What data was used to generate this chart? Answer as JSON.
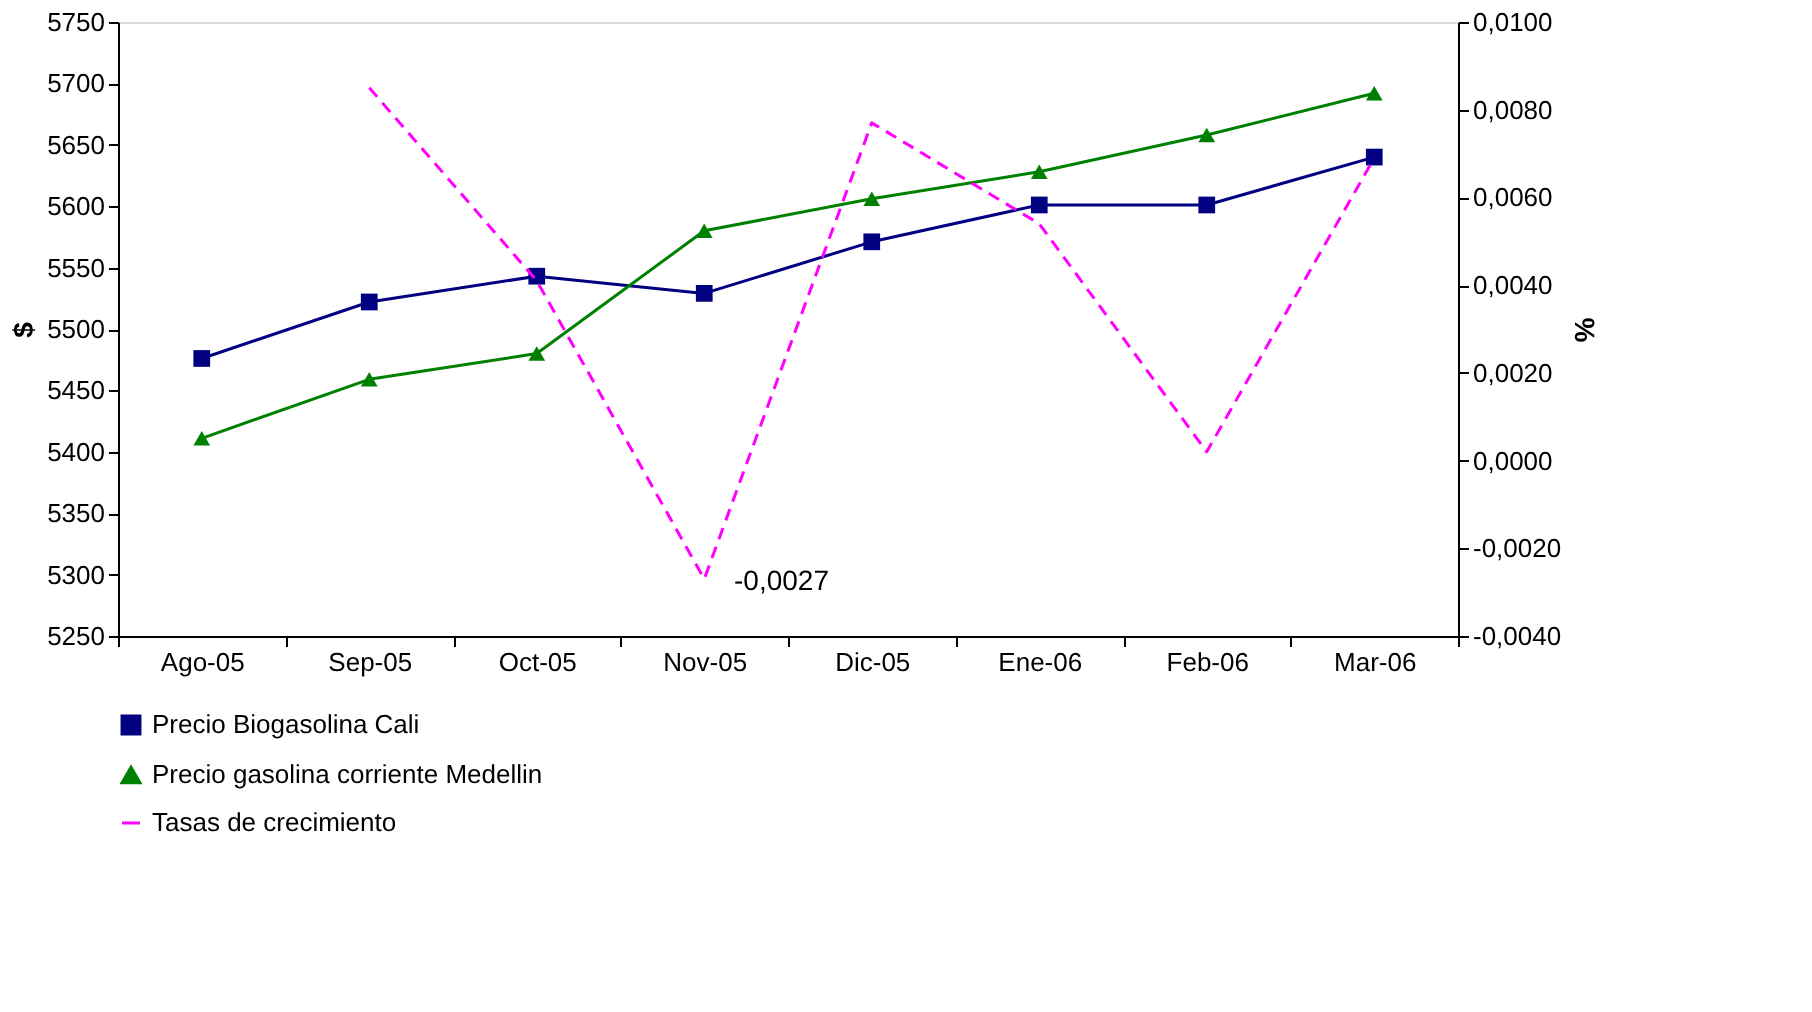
{
  "chart_data": {
    "type": "line",
    "categories": [
      "Ago-05",
      "Sep-05",
      "Oct-05",
      "Nov-05",
      "Dic-05",
      "Ene-06",
      "Feb-06",
      "Mar-06"
    ],
    "ylabel": "$",
    "y2label": "%",
    "ylim": [
      5250,
      5750
    ],
    "yticks": [
      5250,
      5300,
      5350,
      5400,
      5450,
      5500,
      5550,
      5600,
      5650,
      5700,
      5750
    ],
    "y2lim": [
      -0.004,
      0.01
    ],
    "y2ticks": [
      {
        "value": -0.004,
        "label": "-0,0040"
      },
      {
        "value": -0.002,
        "label": "-0,0020"
      },
      {
        "value": 0,
        "label": "0,0000"
      },
      {
        "value": 0.002,
        "label": "0,0020"
      },
      {
        "value": 0.004,
        "label": "0,0040"
      },
      {
        "value": 0.006,
        "label": "0,0060"
      },
      {
        "value": 0.008,
        "label": "0,0080"
      },
      {
        "value": 0.01,
        "label": "0,0100"
      }
    ],
    "series": [
      {
        "name": "Precio Biogasolina Cali",
        "color": "#000080",
        "marker": "square",
        "line_style": "solid",
        "values": [
          5476,
          5522,
          5543,
          5529,
          5571,
          5601,
          5601,
          5640
        ]
      },
      {
        "name": "Precio gasolina corriente Medellin",
        "color": "#008000",
        "marker": "triangle",
        "line_style": "solid",
        "values": [
          5411,
          5459,
          5480,
          5580,
          5606,
          5628,
          5658,
          5692
        ]
      },
      {
        "name": "Tasas de crecimiento",
        "color": "#ff00ff",
        "marker": "none",
        "line_style": "dashed",
        "axis": "y2",
        "values": [
          null,
          0.0085,
          0.0041,
          -0.0027,
          0.0077,
          0.0054,
          0.0002,
          0.0069
        ]
      }
    ],
    "annotations": [
      "-0,0027"
    ],
    "legend": "bottom",
    "grid": false
  }
}
